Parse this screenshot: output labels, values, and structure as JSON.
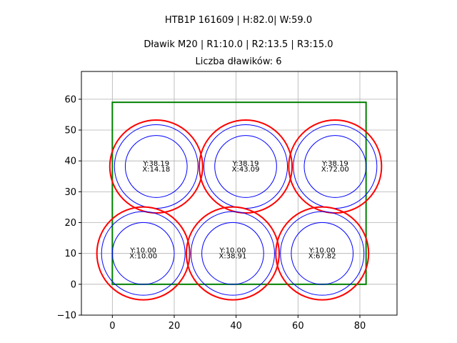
{
  "chart_data": {
    "type": "scatter",
    "title_lines": [
      "HTB1P 161609 | H:82.0| W:59.0",
      "Dławik M20 | R1:10.0 | R2:13.5 | R3:15.0",
      "Liczba dławików: 6"
    ],
    "xlim": [
      -10,
      92
    ],
    "ylim": [
      -10,
      69
    ],
    "x_ticks": [
      0,
      20,
      40,
      60,
      80
    ],
    "y_ticks": [
      -10,
      0,
      10,
      20,
      30,
      40,
      50,
      60
    ],
    "x_tick_labels": [
      "0",
      "20",
      "40",
      "60",
      "80"
    ],
    "y_tick_labels": [
      "−10",
      "0",
      "10",
      "20",
      "30",
      "40",
      "50",
      "60"
    ],
    "grid": true,
    "rectangle": {
      "x": 0,
      "y": 0,
      "width": 82.0,
      "height": 59.0,
      "color": "#008000"
    },
    "radii": {
      "r1": 10.0,
      "r2": 13.5,
      "r3": 15.0
    },
    "circle_colors": {
      "inner": "#0000ff",
      "outer": "#ff0000"
    },
    "points": [
      {
        "x": 14.18,
        "y": 38.19,
        "label_y": "Y:38.19",
        "label_x": "X:14.18"
      },
      {
        "x": 43.09,
        "y": 38.19,
        "label_y": "Y:38.19",
        "label_x": "X:43.09"
      },
      {
        "x": 72.0,
        "y": 38.19,
        "label_y": "Y:38.19",
        "label_x": "X:72.00"
      },
      {
        "x": 10.0,
        "y": 10.0,
        "label_y": "Y:10.00",
        "label_x": "X:10.00"
      },
      {
        "x": 38.91,
        "y": 10.0,
        "label_y": "Y:10.00",
        "label_x": "X:38.91"
      },
      {
        "x": 67.82,
        "y": 10.0,
        "label_y": "Y:10.00",
        "label_x": "X:67.82"
      }
    ]
  }
}
